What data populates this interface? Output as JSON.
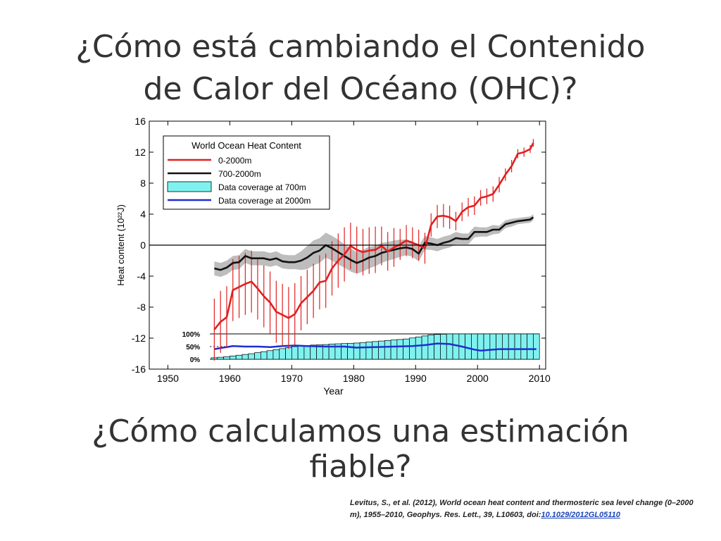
{
  "slide": {
    "title_line1": "¿Cómo está cambiando el Contenido",
    "title_line2": "de Calor del Océano (OHC)?",
    "question": "¿Cómo calculamos una estimación fiable?",
    "citation_text": "Levitus, S., et al. (2012), World ocean heat content and thermosteric sea level change (0–2000 m), 1955–2010, Geophys. Res. Lett., 39, L10603, doi:",
    "citation_link": "10.1029/2012GL05110"
  },
  "chart_data": {
    "type": "line",
    "legend_title": "World Ocean Heat Content",
    "xlabel": "Year",
    "ylabel": "Heat content (10²²J)",
    "xlim": [
      1947,
      2011
    ],
    "ylim": [
      -16,
      16
    ],
    "xticks": [
      1950,
      1960,
      1970,
      1980,
      1990,
      2000,
      2010
    ],
    "yticks": [
      16,
      12,
      8,
      4,
      0,
      -4,
      -8,
      -12,
      -16
    ],
    "legend_placement": "top-left",
    "coverage_labels": [
      "100%",
      "50%",
      "0%"
    ],
    "colors": {
      "red": "#e02020",
      "black": "#111111",
      "cyan": "#7ff2f0",
      "blue": "#1f2fd0",
      "band": "#bdbdbd"
    },
    "series": [
      {
        "name": "0-2000m",
        "x": [
          1957.5,
          1958.5,
          1959.5,
          1960.5,
          1961.5,
          1962.5,
          1963.5,
          1964.5,
          1965.5,
          1966.5,
          1967.5,
          1968.5,
          1969.5,
          1970.5,
          1971.5,
          1972.5,
          1973.5,
          1974.5,
          1975.5,
          1976.5,
          1977.5,
          1978.5,
          1979.5,
          1980.5,
          1981.5,
          1982.5,
          1983.5,
          1984.5,
          1985.5,
          1986.5,
          1987.5,
          1988.5,
          1989.5,
          1990.5,
          1991.5,
          1992.5,
          1993.5,
          1994.5,
          1995.5,
          1996.5,
          1997.5,
          1998.5,
          1999.5,
          2000.5,
          2001.5,
          2002.5,
          2003.5,
          2004.5,
          2005.5,
          2006.5,
          2007.5,
          2008.5,
          2009.0
        ],
        "values": [
          -10.9,
          -9.9,
          -9.3,
          -5.8,
          -5.4,
          -5.0,
          -4.7,
          -5.6,
          -6.6,
          -7.4,
          -8.6,
          -9.0,
          -9.4,
          -8.9,
          -7.5,
          -6.7,
          -5.9,
          -4.8,
          -4.6,
          -3.0,
          -2.0,
          -1.2,
          -0.1,
          -0.6,
          -0.9,
          -0.7,
          -0.6,
          -0.1,
          -0.8,
          -0.3,
          0.1,
          0.6,
          0.3,
          0.0,
          -0.4,
          2.6,
          3.7,
          3.8,
          3.6,
          3.1,
          4.3,
          4.9,
          5.1,
          6.1,
          6.3,
          6.6,
          7.8,
          9.1,
          10.2,
          11.8,
          12.0,
          12.4,
          13.2
        ],
        "err": [
          4,
          4,
          4,
          4,
          4,
          4,
          4,
          4,
          4,
          4,
          4,
          4,
          4,
          4,
          3.5,
          3.5,
          3.5,
          3.5,
          3.5,
          3.5,
          3.5,
          3.5,
          3.0,
          3.0,
          3.0,
          3.0,
          3.0,
          2.5,
          2.5,
          2.5,
          2.0,
          2.0,
          2.0,
          2.0,
          2.0,
          1.5,
          1.5,
          1.5,
          1.5,
          1.2,
          1.2,
          1.2,
          1.2,
          1.0,
          1.0,
          1.0,
          1.0,
          0.8,
          0.8,
          0.6,
          0.6,
          0.5,
          0.5
        ]
      },
      {
        "name": "700-2000m",
        "x": [
          1957.5,
          1958.5,
          1959.5,
          1960.5,
          1961.5,
          1962.5,
          1963.5,
          1964.5,
          1965.5,
          1966.5,
          1967.5,
          1968.5,
          1969.5,
          1970.5,
          1971.5,
          1972.5,
          1973.5,
          1974.5,
          1975.5,
          1976.5,
          1977.5,
          1978.5,
          1979.5,
          1980.5,
          1981.5,
          1982.5,
          1983.5,
          1984.5,
          1985.5,
          1986.5,
          1987.5,
          1988.5,
          1989.5,
          1990.5,
          1991.5,
          1992.5,
          1993.5,
          1994.5,
          1995.5,
          1996.5,
          1997.5,
          1998.5,
          1999.5,
          2000.5,
          2001.5,
          2002.5,
          2003.5,
          2004.5,
          2005.5,
          2006.5,
          2007.5,
          2008.5,
          2009.0
        ],
        "values": [
          -3.0,
          -3.2,
          -2.9,
          -2.3,
          -2.2,
          -1.4,
          -1.7,
          -1.7,
          -1.7,
          -1.9,
          -1.7,
          -2.1,
          -2.2,
          -2.2,
          -2.0,
          -1.6,
          -1.0,
          -0.7,
          0.0,
          -0.4,
          -0.9,
          -1.4,
          -1.9,
          -2.3,
          -2.0,
          -1.6,
          -1.4,
          -1.0,
          -0.8,
          -0.6,
          -0.4,
          -0.3,
          -0.5,
          -1.1,
          0.3,
          0.2,
          0.0,
          0.3,
          0.5,
          0.9,
          0.8,
          0.8,
          1.7,
          1.7,
          1.7,
          2.0,
          2.0,
          2.7,
          2.9,
          3.1,
          3.2,
          3.3,
          3.6
        ],
        "band_width": [
          0.9,
          0.9,
          0.9,
          0.9,
          0.9,
          0.9,
          0.9,
          0.9,
          0.9,
          0.9,
          0.9,
          0.9,
          0.9,
          0.9,
          1.2,
          1.5,
          1.6,
          1.6,
          1.6,
          1.6,
          1.6,
          1.5,
          1.5,
          1.4,
          1.4,
          1.4,
          1.3,
          1.3,
          1.2,
          1.2,
          1.1,
          1.0,
          1.0,
          1.0,
          0.9,
          0.8,
          0.8,
          0.8,
          0.8,
          0.8,
          0.7,
          0.7,
          0.7,
          0.6,
          0.6,
          0.6,
          0.5,
          0.5,
          0.5,
          0.4,
          0.4,
          0.4,
          0.4
        ]
      }
    ],
    "coverage_700m": {
      "years": [
        1957,
        1958,
        1959,
        1960,
        1961,
        1962,
        1963,
        1964,
        1965,
        1966,
        1967,
        1968,
        1969,
        1970,
        1971,
        1972,
        1973,
        1974,
        1975,
        1976,
        1977,
        1978,
        1979,
        1980,
        1981,
        1982,
        1983,
        1984,
        1985,
        1986,
        1987,
        1988,
        1989,
        1990,
        1991,
        1992,
        1993,
        1994,
        1995,
        1996,
        1997,
        1998,
        1999,
        2000,
        2001,
        2002,
        2003,
        2004,
        2005,
        2006,
        2007,
        2008,
        2009
      ],
      "percent": [
        6,
        8,
        10,
        13,
        16,
        19,
        22,
        26,
        30,
        34,
        38,
        42,
        46,
        50,
        52,
        54,
        56,
        57,
        58,
        60,
        61,
        62,
        63,
        64,
        66,
        68,
        70,
        72,
        74,
        76,
        78,
        80,
        84,
        88,
        92,
        96,
        98,
        99,
        100,
        100,
        100,
        100,
        100,
        100,
        100,
        100,
        100,
        100,
        100,
        100,
        100,
        100,
        100
      ]
    },
    "coverage_2000m": {
      "years": [
        1957,
        1958,
        1960,
        1962,
        1964,
        1966,
        1968,
        1970,
        1972,
        1975,
        1978,
        1980,
        1983,
        1986,
        1989,
        1991,
        1993,
        1995,
        1997,
        1999,
        2000,
        2001,
        2003,
        2005,
        2007,
        2009
      ],
      "percent": [
        40,
        44,
        52,
        50,
        50,
        48,
        52,
        54,
        52,
        50,
        50,
        46,
        48,
        50,
        52,
        56,
        62,
        60,
        50,
        38,
        34,
        36,
        40,
        40,
        40,
        40
      ]
    }
  }
}
